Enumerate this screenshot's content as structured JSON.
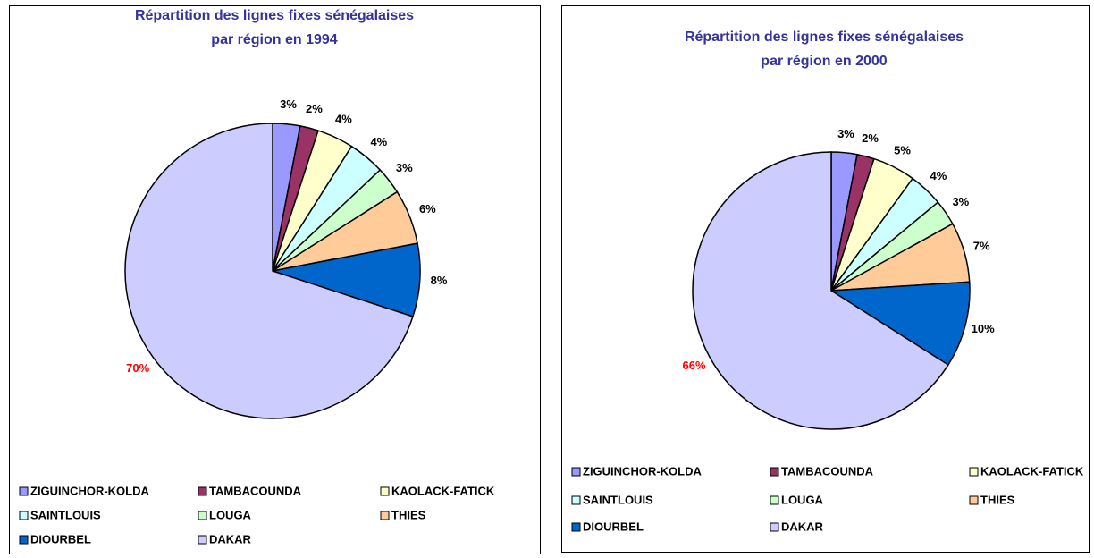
{
  "chart_data": [
    {
      "type": "pie",
      "title": [
        "Répartition des lignes fixes sénégalaises",
        "par région en 1994"
      ],
      "categories": [
        "ZIGUINCHOR-KOLDA",
        "TAMBACOUNDA",
        "KAOLACK-FATICK",
        "SAINTLOUIS",
        "LOUGA",
        "THIES",
        "DIOURBEL",
        "DAKAR"
      ],
      "values": [
        3,
        2,
        4,
        4,
        3,
        6,
        8,
        70
      ],
      "value_labels": [
        "3%",
        "2%",
        "4%",
        "4%",
        "3%",
        "6%",
        "8%",
        "70%"
      ],
      "colors": [
        "#9999ff",
        "#993366",
        "#ffffcc",
        "#ccffff",
        "#ccffcc",
        "#ffcc99",
        "#0066cc",
        "#ccccff"
      ],
      "label_colors": [
        "#000000",
        "#000000",
        "#000000",
        "#000000",
        "#000000",
        "#000000",
        "#000000",
        "#ff0000"
      ],
      "legend": "bottom"
    },
    {
      "type": "pie",
      "title": [
        "Répartition des lignes fixes sénégalaises",
        "par région en 2000"
      ],
      "categories": [
        "ZIGUINCHOR-KOLDA",
        "TAMBACOUNDA",
        "KAOLACK-FATICK",
        "SAINTLOUIS",
        "LOUGA",
        "THIES",
        "DIOURBEL",
        "DAKAR"
      ],
      "values": [
        3,
        2,
        5,
        4,
        3,
        7,
        10,
        66
      ],
      "value_labels": [
        "3%",
        "2%",
        "5%",
        "4%",
        "3%",
        "7%",
        "10%",
        "66%"
      ],
      "colors": [
        "#9999ff",
        "#993366",
        "#ffffcc",
        "#ccffff",
        "#ccffcc",
        "#ffcc99",
        "#0066cc",
        "#ccccff"
      ],
      "label_colors": [
        "#000000",
        "#000000",
        "#000000",
        "#000000",
        "#000000",
        "#000000",
        "#000000",
        "#ff0000"
      ],
      "legend": "bottom"
    }
  ]
}
